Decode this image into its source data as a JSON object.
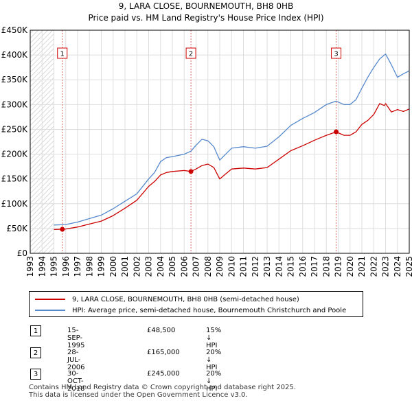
{
  "title_line1": "9, LARA CLOSE, BOURNEMOUTH, BH8 0HB",
  "title_line2": "Price paid vs. HM Land Registry's House Price Index (HPI)",
  "colors": {
    "price": "#cc0000",
    "hpi": "#5588cc",
    "grid": "#dddddd",
    "marker": "#cc0000",
    "hatch": "#cccccc",
    "shade": "#e8eef8"
  },
  "chart_data": {
    "type": "line",
    "title": "Price paid vs. HM Land Registry's House Price Index (HPI)",
    "xlabel": "",
    "ylabel": "",
    "xlim": [
      1993,
      2025
    ],
    "ylim": [
      0,
      450000
    ],
    "x_ticks": [
      "1993",
      "1994",
      "1995",
      "1996",
      "1997",
      "1998",
      "1999",
      "2000",
      "2001",
      "2002",
      "2003",
      "2004",
      "2005",
      "2006",
      "2007",
      "2008",
      "2009",
      "2010",
      "2011",
      "2012",
      "2013",
      "2014",
      "2015",
      "2016",
      "2017",
      "2018",
      "2019",
      "2020",
      "2021",
      "2022",
      "2023",
      "2024",
      "2025"
    ],
    "y_ticks": [
      {
        "value": 0,
        "label": "£0"
      },
      {
        "value": 50000,
        "label": "£50K"
      },
      {
        "value": 100000,
        "label": "£100K"
      },
      {
        "value": 150000,
        "label": "£150K"
      },
      {
        "value": 200000,
        "label": "£200K"
      },
      {
        "value": 250000,
        "label": "£250K"
      },
      {
        "value": 300000,
        "label": "£300K"
      },
      {
        "value": 350000,
        "label": "£350K"
      },
      {
        "value": 400000,
        "label": "£400K"
      },
      {
        "value": 450000,
        "label": "£450K"
      }
    ],
    "data_start": 1995.0,
    "series": [
      {
        "name": "9, LARA CLOSE, BOURNEMOUTH, BH8 0HB (semi-detached house)",
        "x": [
          1995.0,
          1995.71,
          1996.0,
          1997.0,
          1998.0,
          1999.0,
          2000.0,
          2001.0,
          2002.0,
          2003.0,
          2003.5,
          2004.0,
          2004.5,
          2005.0,
          2006.0,
          2006.57,
          2007.0,
          2007.5,
          2008.0,
          2008.5,
          2009.0,
          2009.5,
          2010.0,
          2011.0,
          2012.0,
          2013.0,
          2014.0,
          2015.0,
          2016.0,
          2017.0,
          2017.5,
          2018.0,
          2018.83,
          2019.0,
          2019.5,
          2020.0,
          2020.5,
          2021.0,
          2021.5,
          2022.0,
          2022.5,
          2022.9,
          2023.0,
          2023.5,
          2024.0,
          2024.5,
          2025.0
        ],
        "values": [
          48000,
          48500,
          49000,
          53000,
          59000,
          65000,
          76000,
          91000,
          107000,
          135000,
          145000,
          158000,
          163000,
          165000,
          167000,
          165000,
          170000,
          177000,
          180000,
          173000,
          150000,
          160000,
          170000,
          172000,
          170000,
          173000,
          190000,
          207000,
          217000,
          228000,
          233000,
          238000,
          245000,
          243000,
          238000,
          238000,
          245000,
          260000,
          268000,
          280000,
          302000,
          298000,
          302000,
          285000,
          290000,
          286000,
          291000
        ]
      },
      {
        "name": "HPI: Average price, semi-detached house, Bournemouth Christchurch and Poole",
        "x": [
          1995.0,
          1996.0,
          1997.0,
          1998.0,
          1999.0,
          2000.0,
          2001.0,
          2002.0,
          2003.0,
          2003.5,
          2004.0,
          2004.5,
          2005.0,
          2006.0,
          2006.57,
          2007.0,
          2007.5,
          2008.0,
          2008.5,
          2009.0,
          2009.5,
          2010.0,
          2011.0,
          2012.0,
          2013.0,
          2014.0,
          2015.0,
          2016.0,
          2017.0,
          2017.5,
          2018.0,
          2018.83,
          2019.0,
          2019.5,
          2020.0,
          2020.5,
          2021.0,
          2021.5,
          2022.0,
          2022.5,
          2022.9,
          2023.0,
          2023.5,
          2024.0,
          2024.5,
          2025.0
        ],
        "values": [
          57000,
          58000,
          63000,
          70000,
          77000,
          90000,
          105000,
          120000,
          150000,
          163000,
          185000,
          193000,
          195000,
          200000,
          206000,
          218000,
          230000,
          227000,
          215000,
          188000,
          200000,
          212000,
          215000,
          212000,
          216000,
          235000,
          258000,
          272000,
          284000,
          292000,
          300000,
          307000,
          305000,
          300000,
          300000,
          310000,
          333000,
          355000,
          375000,
          392000,
          400000,
          402000,
          380000,
          355000,
          362000,
          368000
        ]
      }
    ],
    "sale_markers": [
      {
        "label": "1",
        "x": 1995.71,
        "value": 48500
      },
      {
        "label": "2",
        "x": 2006.57,
        "value": 165000
      },
      {
        "label": "3",
        "x": 2018.83,
        "value": 245000
      }
    ]
  },
  "legend": {
    "price_label": "9, LARA CLOSE, BOURNEMOUTH, BH8 0HB (semi-detached house)",
    "hpi_label": "HPI: Average price, semi-detached house, Bournemouth Christchurch and Poole"
  },
  "sales": [
    {
      "num": "1",
      "date": "15-SEP-1995",
      "price": "£48,500",
      "hpi": "15% ↓ HPI"
    },
    {
      "num": "2",
      "date": "28-JUL-2006",
      "price": "£165,000",
      "hpi": "20% ↓ HPI"
    },
    {
      "num": "3",
      "date": "30-OCT-2018",
      "price": "£245,000",
      "hpi": "20% ↓ HPI"
    }
  ],
  "footer": {
    "line1": "Contains HM Land Registry data © Crown copyright and database right 2025.",
    "line2": "This data is licensed under the Open Government Licence v3.0."
  }
}
